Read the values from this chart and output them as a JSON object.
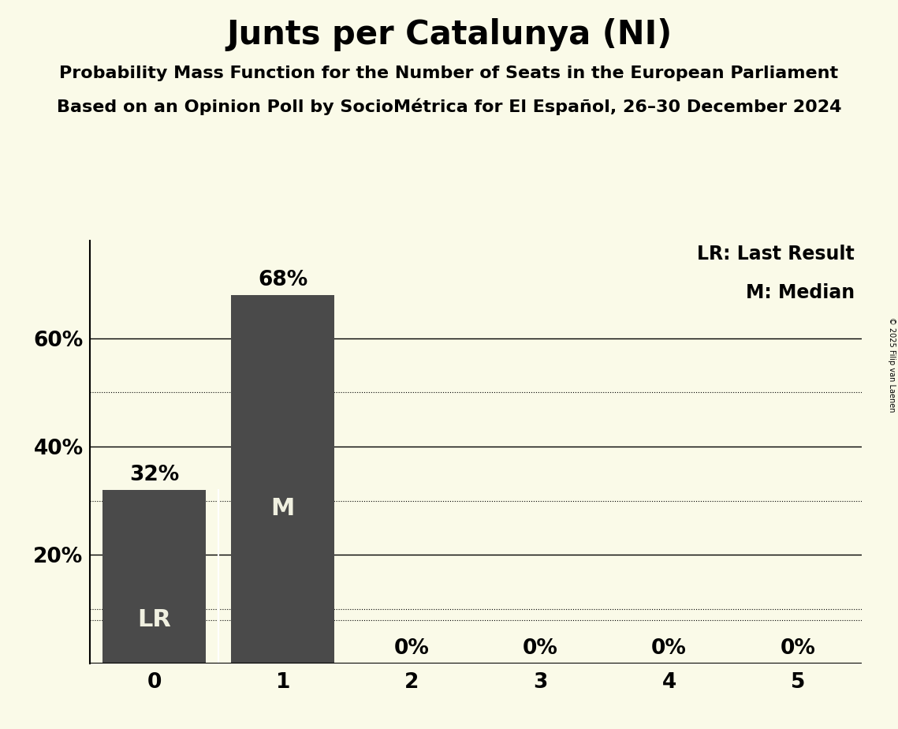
{
  "title": "Junts per Catalunya (NI)",
  "subtitle1": "Probability Mass Function for the Number of Seats in the European Parliament",
  "subtitle2": "Based on an Opinion Poll by SocioMétrica for El Español, 26–30 December 2024",
  "copyright": "© 2025 Filip van Laenen",
  "categories": [
    0,
    1,
    2,
    3,
    4,
    5
  ],
  "values": [
    0.32,
    0.68,
    0.0,
    0.0,
    0.0,
    0.0
  ],
  "bar_color": "#4a4a4a",
  "background_color": "#fafae8",
  "last_result": 0,
  "median": 1,
  "solid_gridlines": [
    0.2,
    0.4,
    0.6
  ],
  "dotted_gridlines": [
    0.1,
    0.3,
    0.5,
    0.08
  ],
  "title_fontsize": 30,
  "subtitle_fontsize": 16,
  "annotation_fontsize": 19,
  "tick_fontsize": 19,
  "legend_fontsize": 17,
  "label_fontsize": 22
}
